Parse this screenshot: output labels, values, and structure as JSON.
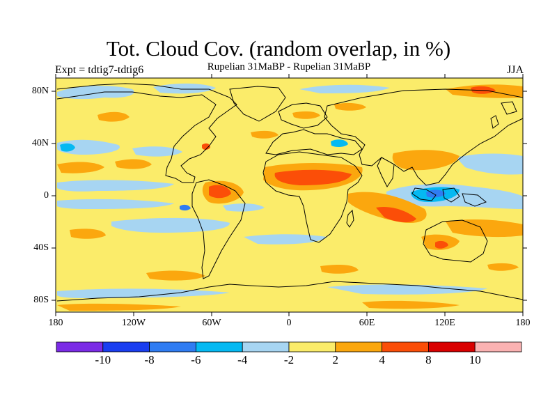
{
  "title": "Tot. Cloud Cov. (random overlap, in %)",
  "subtitle": "Rupelian  31MaBP - Rupelian  31MaBP",
  "expt": "Expt = tdtig7-tdtig6",
  "season": "JJA",
  "lat_labels": [
    "80N",
    "40N",
    "0",
    "40S",
    "80S"
  ],
  "lon_labels": [
    "180",
    "120W",
    "60W",
    "0",
    "60E",
    "120E",
    "180"
  ],
  "colorbar": {
    "colors": [
      "#7b2be6",
      "#1a3ef0",
      "#2f7cf2",
      "#05b9f2",
      "#a7d5f2",
      "#fbec6a",
      "#fba70e",
      "#fb4e08",
      "#d90000",
      "#fbb2b2"
    ],
    "labels": [
      "-10",
      "-8",
      "-6",
      "-4",
      "-2",
      "2",
      "4",
      "8",
      "10"
    ]
  }
}
